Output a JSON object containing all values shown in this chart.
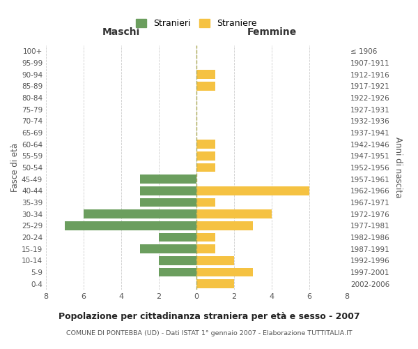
{
  "age_groups": [
    "0-4",
    "5-9",
    "10-14",
    "15-19",
    "20-24",
    "25-29",
    "30-34",
    "35-39",
    "40-44",
    "45-49",
    "50-54",
    "55-59",
    "60-64",
    "65-69",
    "70-74",
    "75-79",
    "80-84",
    "85-89",
    "90-94",
    "95-99",
    "100+"
  ],
  "birth_years": [
    "2002-2006",
    "1997-2001",
    "1992-1996",
    "1987-1991",
    "1982-1986",
    "1977-1981",
    "1972-1976",
    "1967-1971",
    "1962-1966",
    "1957-1961",
    "1952-1956",
    "1947-1951",
    "1942-1946",
    "1937-1941",
    "1932-1936",
    "1927-1931",
    "1922-1926",
    "1917-1921",
    "1912-1916",
    "1907-1911",
    "≤ 1906"
  ],
  "maschi": [
    0,
    2,
    2,
    3,
    2,
    7,
    6,
    3,
    3,
    3,
    0,
    0,
    0,
    0,
    0,
    0,
    0,
    0,
    0,
    0,
    0
  ],
  "femmine": [
    2,
    3,
    2,
    1,
    1,
    3,
    4,
    1,
    6,
    0,
    1,
    1,
    1,
    0,
    0,
    0,
    0,
    1,
    1,
    0,
    0
  ],
  "maschi_color": "#6b9e5e",
  "femmine_color": "#f5c242",
  "title": "Popolazione per cittadinanza straniera per età e sesso - 2007",
  "subtitle": "COMUNE DI PONTEBBA (UD) - Dati ISTAT 1° gennaio 2007 - Elaborazione TUTTITALIA.IT",
  "ylabel_left": "Fasce di età",
  "ylabel_right": "Anni di nascita",
  "xlabel_left": "Maschi",
  "xlabel_right": "Femmine",
  "legend_maschi": "Stranieri",
  "legend_femmine": "Straniere",
  "xlim": 8,
  "background_color": "#ffffff",
  "grid_color": "#cccccc"
}
